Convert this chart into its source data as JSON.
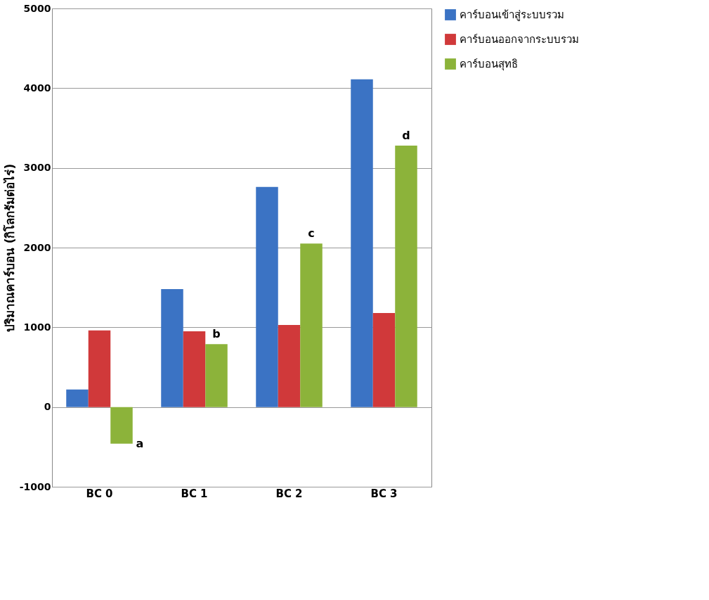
{
  "chart_data": {
    "type": "bar",
    "ylabel": "ปริมาณคาร์บอน (กิโลกรัมต่อไร่)",
    "categories": [
      "BC 0",
      "BC 1",
      "BC 2",
      "BC 3"
    ],
    "series": [
      {
        "name": "คาร์บอนเข้าสู่ระบบรวม",
        "color": "#3b73c4",
        "values": [
          220,
          1480,
          2760,
          4110
        ]
      },
      {
        "name": "คาร์บอนออกจากระบบรวม",
        "color": "#d0393a",
        "values": [
          960,
          950,
          1030,
          1180
        ]
      },
      {
        "name": "คาร์บอนสุทธิ",
        "color": "#8cb33a",
        "values": [
          -460,
          790,
          2050,
          3280
        ]
      }
    ],
    "ylim": [
      -1000,
      5000
    ],
    "yticks": [
      -1000,
      0,
      1000,
      2000,
      3000,
      4000,
      5000
    ],
    "grid": "y",
    "legend": "right",
    "annotations": [
      "a",
      "b",
      "c",
      "d"
    ]
  }
}
